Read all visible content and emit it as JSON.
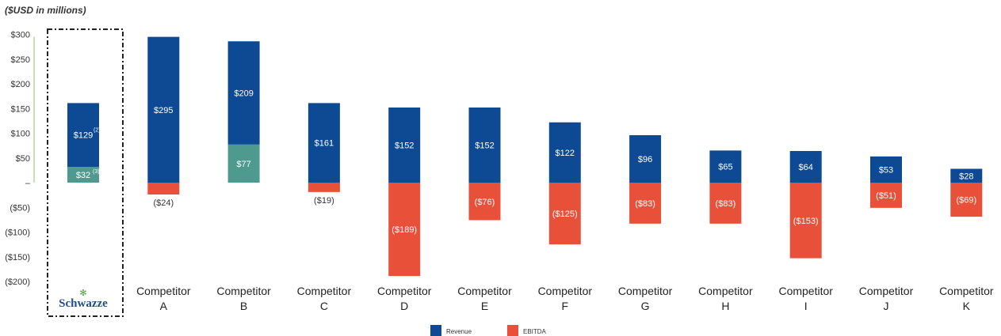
{
  "chart_data": {
    "type": "bar",
    "unit_label": "($USD in millions)",
    "y_ticks": [
      {
        "value": 300,
        "label": "$300"
      },
      {
        "value": 250,
        "label": "$250"
      },
      {
        "value": 200,
        "label": "$200"
      },
      {
        "value": 150,
        "label": "$150"
      },
      {
        "value": 100,
        "label": "$100"
      },
      {
        "value": 50,
        "label": "$50"
      },
      {
        "value": 0,
        "label": "–"
      },
      {
        "value": -50,
        "label": "($50)"
      },
      {
        "value": -100,
        "label": "($100)"
      },
      {
        "value": -150,
        "label": "($150)"
      },
      {
        "value": -200,
        "label": "($200)"
      }
    ],
    "ylim": [
      -200,
      300
    ],
    "categories": [
      {
        "line1": "Schwazze",
        "line2": ""
      },
      {
        "line1": "Competitor",
        "line2": "A"
      },
      {
        "line1": "Competitor",
        "line2": "B"
      },
      {
        "line1": "Competitor",
        "line2": "C"
      },
      {
        "line1": "Competitor",
        "line2": "D"
      },
      {
        "line1": "Competitor",
        "line2": "E"
      },
      {
        "line1": "Competitor",
        "line2": "F"
      },
      {
        "line1": "Competitor",
        "line2": "G"
      },
      {
        "line1": "Competitor",
        "line2": "H"
      },
      {
        "line1": "Competitor",
        "line2": "I"
      },
      {
        "line1": "Competitor",
        "line2": "J"
      },
      {
        "line1": "Competitor",
        "line2": "K"
      }
    ],
    "series": [
      {
        "name": "Revenue",
        "color": "#0e4a94",
        "values": [
          129,
          295,
          209,
          161,
          152,
          152,
          122,
          96,
          65,
          64,
          53,
          28
        ],
        "labels": [
          "$129",
          "$295",
          "$209",
          "$161",
          "$152",
          "$152",
          "$122",
          "$96",
          "$65",
          "$64",
          "$53",
          "$28"
        ]
      },
      {
        "name": "EBITDA",
        "color": "#e8503a",
        "positive_color": "#4e9a8f",
        "values": [
          32,
          -24,
          77,
          -19,
          -189,
          -76,
          -125,
          -83,
          -83,
          -153,
          -51,
          -69
        ],
        "labels": [
          "$32",
          "($24)",
          "$77",
          "($19)",
          "($189)",
          "($76)",
          "($125)",
          "($83)",
          "($83)",
          "($153)",
          "($51)",
          "($69)"
        ]
      }
    ],
    "footnote_marks": [
      "(2)",
      "(3)"
    ],
    "legend": {
      "placement": "bottom-center"
    },
    "highlight_category": "Schwazze"
  }
}
